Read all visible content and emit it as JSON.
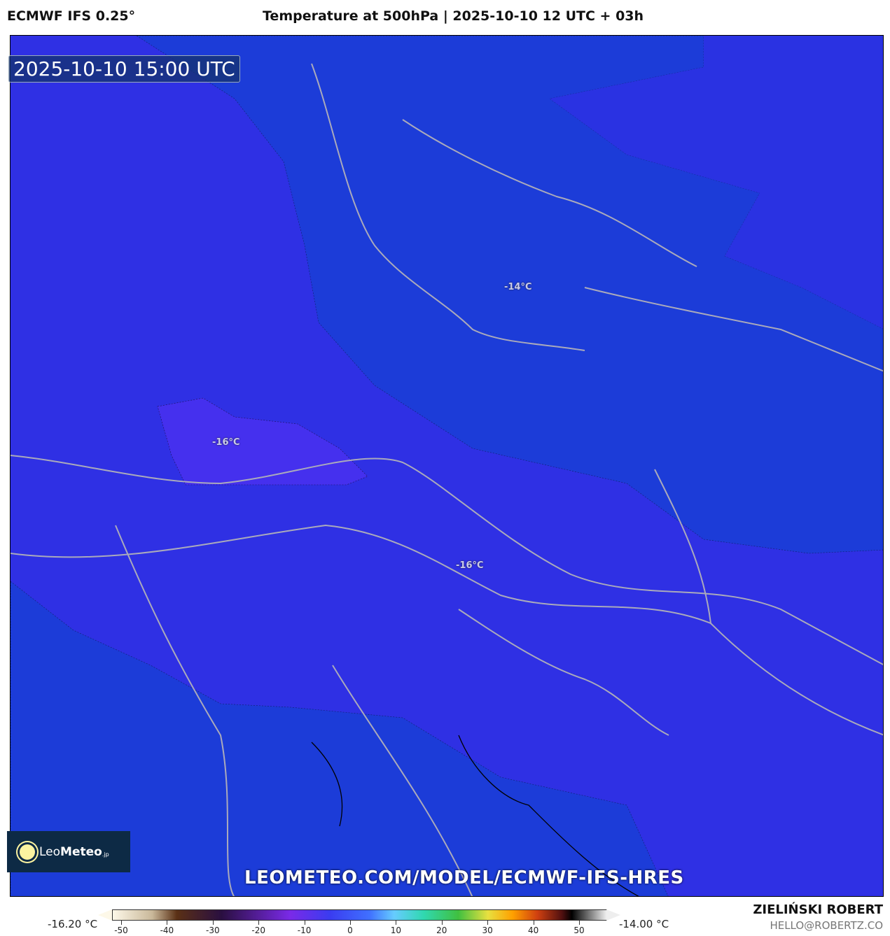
{
  "header": {
    "model": "ECMWF IFS 0.25°",
    "title": "Temperature at 500hPa | 2025-10-10 12 UTC + 03h"
  },
  "map": {
    "valid_time": "2025-10-10 15:00 UTC",
    "watermark": "LEOMETEO.COM/MODEL/ECMWF-IFS-HRES",
    "contour_labels": [
      "-14°C",
      "-16°C",
      "-16°C"
    ],
    "colors": {
      "base": "#2f30e4",
      "warm": "#1c3cd8",
      "cold": "#4530ee"
    }
  },
  "logo": {
    "text_light": "Leo",
    "text_bold": "Meteo",
    "suffix": ".jp"
  },
  "colorbar": {
    "min_label": "-16.20 °C",
    "max_label": "-14.00 °C",
    "ticks": [
      "-50",
      "-40",
      "-30",
      "-20",
      "-10",
      "0",
      "10",
      "20",
      "30",
      "40",
      "50"
    ]
  },
  "credits": {
    "author": "ZIELIŃSKI ROBERT",
    "email": "HELLO@ROBERTZ.CO"
  }
}
